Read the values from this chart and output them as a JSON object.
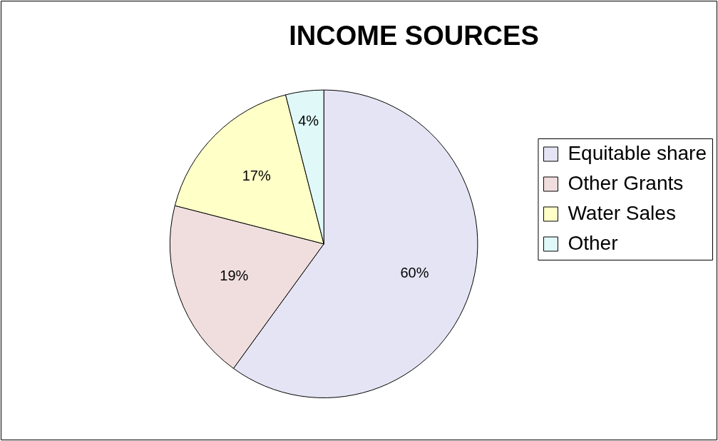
{
  "chart_data": {
    "type": "pie",
    "title": "INCOME SOURCES",
    "categories": [
      "Equitable share",
      "Other Grants",
      "Water Sales",
      "Other"
    ],
    "values": [
      60,
      19,
      17,
      4
    ],
    "colors": [
      "#e4e4f4",
      "#f0dede",
      "#ffffc8",
      "#e0f8f8"
    ],
    "data_labels": true,
    "value_labels": [
      "60%",
      "19%",
      "17%",
      "4%"
    ],
    "legend": "right"
  }
}
